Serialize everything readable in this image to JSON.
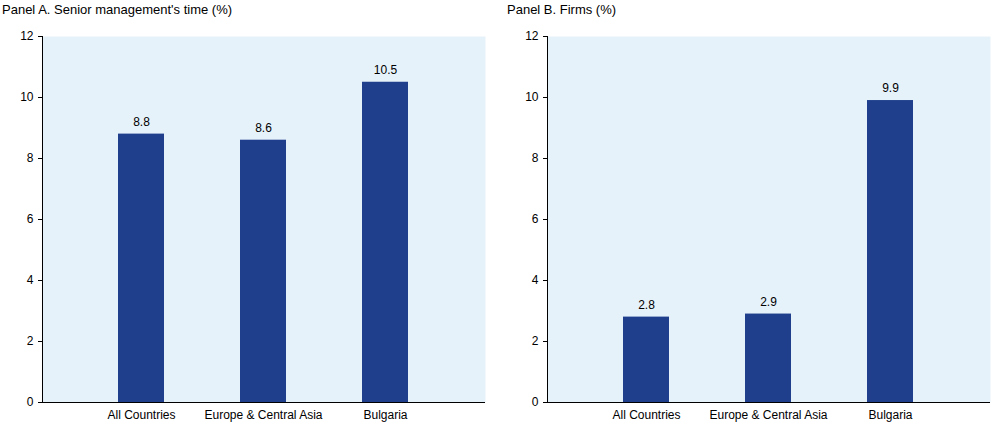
{
  "chart_data": [
    {
      "type": "bar",
      "title": "Panel A. Senior management's time (%)",
      "categories": [
        "All Countries",
        "Europe & Central Asia",
        "Bulgaria"
      ],
      "values": [
        8.8,
        8.6,
        10.5
      ],
      "color": "#1f3e8c",
      "ylim": [
        0,
        12
      ],
      "yticks": [
        0,
        2,
        4,
        6,
        8,
        10,
        12
      ],
      "data_labels": true
    },
    {
      "type": "bar",
      "title": "Panel B. Firms (%)",
      "categories": [
        "All Countries",
        "Europe & Central Asia",
        "Bulgaria"
      ],
      "values": [
        2.8,
        2.9,
        9.9
      ],
      "color": "#1f3e8c",
      "ylim": [
        0,
        12
      ],
      "yticks": [
        0,
        2,
        4,
        6,
        8,
        10,
        12
      ],
      "data_labels": true
    }
  ]
}
